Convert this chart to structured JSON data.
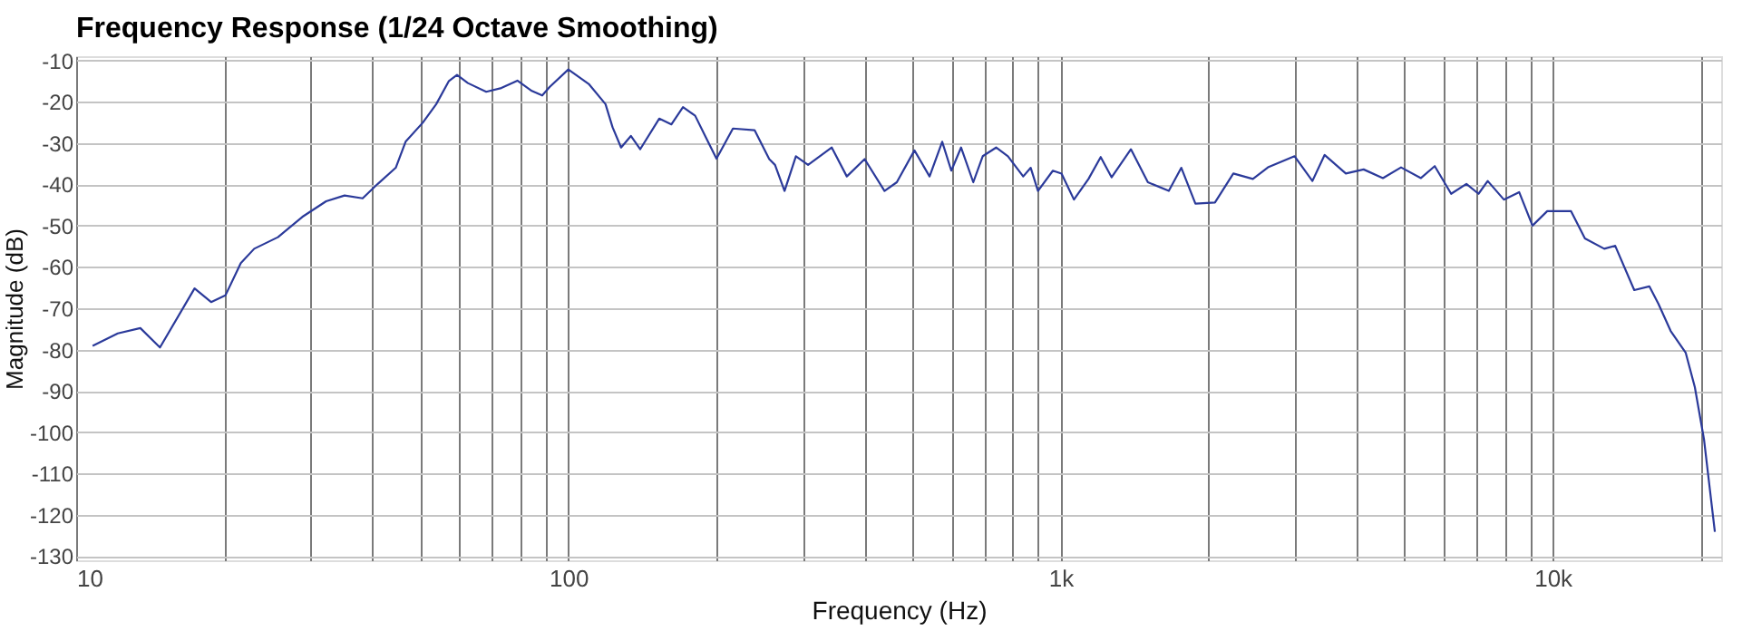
{
  "chart_data": {
    "type": "line",
    "title": "Frequency Response (1/24 Octave Smoothing)",
    "xlabel": "Frequency (Hz)",
    "ylabel": "Magnitude (dB)",
    "log": "x",
    "grid": true,
    "xlim": [
      10,
      22000
    ],
    "ylim": [
      -131,
      -9
    ],
    "xticks": [
      10,
      {
        "value": 20,
        "label": null
      },
      {
        "value": 30,
        "label": null
      },
      {
        "value": 40,
        "label": null
      },
      {
        "value": 50,
        "label": null
      },
      {
        "value": 60,
        "label": null
      },
      {
        "value": 70,
        "label": null
      },
      {
        "value": 80,
        "label": null
      },
      {
        "value": 90,
        "label": null
      },
      100,
      {
        "value": 200,
        "label": null
      },
      {
        "value": 300,
        "label": null
      },
      {
        "value": 400,
        "label": null
      },
      {
        "value": 500,
        "label": null
      },
      {
        "value": 600,
        "label": null
      },
      {
        "value": 700,
        "label": null
      },
      {
        "value": 800,
        "label": null
      },
      {
        "value": 900,
        "label": null
      },
      {
        "value": 1000,
        "label": "1k"
      },
      {
        "value": 2000,
        "label": null
      },
      {
        "value": 3000,
        "label": null
      },
      {
        "value": 4000,
        "label": null
      },
      {
        "value": 5000,
        "label": null
      },
      {
        "value": 6000,
        "label": null
      },
      {
        "value": 7000,
        "label": null
      },
      {
        "value": 8000,
        "label": null
      },
      {
        "value": 9000,
        "label": null
      },
      {
        "value": 10000,
        "label": "10k"
      },
      {
        "value": 20000,
        "label": null
      }
    ],
    "yticks": [
      -10,
      -20,
      -30,
      -40,
      -50,
      -60,
      -70,
      -80,
      -90,
      -100,
      -110,
      -120,
      -130
    ],
    "series": [
      {
        "color": "#2b3a9a",
        "x": [
          10.8,
          12.15,
          13.5,
          14.8,
          17.4,
          18.8,
          20.1,
          21.6,
          23.0,
          25.7,
          28.8,
          32.2,
          35.1,
          38.2,
          41.0,
          44.6,
          46.7,
          50.6,
          53.9,
          57.2,
          59.4,
          62.5,
          68.1,
          73.1,
          78.8,
          84.3,
          88.5,
          91.7,
          100,
          110,
          119,
          123,
          128,
          134,
          140,
          153,
          162,
          171,
          181,
          191,
          200,
          216,
          239,
          256,
          263,
          275,
          290,
          307,
          343,
          368,
          400,
          439,
          465,
          505,
          542,
          575,
          600,
          628,
          665,
          695,
          740,
          782,
          840,
          870,
          900,
          965,
          1005,
          1065,
          1140,
          1207,
          1270,
          1390,
          1505,
          1660,
          1760,
          1880,
          2060,
          2245,
          2460,
          2640,
          2990,
          3250,
          3440,
          3800,
          4130,
          4520,
          4920,
          5400,
          5760,
          6220,
          6680,
          7070,
          7380,
          7960,
          8550,
          9100,
          9750,
          10900,
          11630,
          12730,
          13400,
          14650,
          15720,
          16400,
          17370,
          18640,
          19450,
          20300,
          21360
        ],
        "values": [
          -79.1,
          -76.1,
          -74.8,
          -79.5,
          -65.2,
          -68.5,
          -66.9,
          -59.1,
          -55.6,
          -52.8,
          -47.9,
          -44.1,
          -42.7,
          -43.4,
          -39.9,
          -36.0,
          -29.7,
          -25.1,
          -20.6,
          -15.0,
          -13.5,
          -15.5,
          -17.6,
          -16.7,
          -14.9,
          -17.4,
          -18.5,
          -16.4,
          -12.2,
          -15.7,
          -20.6,
          -26.2,
          -31.1,
          -28.3,
          -31.5,
          -24.1,
          -25.5,
          -21.3,
          -23.4,
          -29.0,
          -33.8,
          -26.5,
          -26.9,
          -33.9,
          -35.3,
          -41.6,
          -33.2,
          -35.3,
          -31.1,
          -38.1,
          -33.9,
          -41.6,
          -39.5,
          -31.8,
          -38.1,
          -29.7,
          -36.7,
          -31.1,
          -39.5,
          -33.2,
          -31.1,
          -33.2,
          -38.1,
          -36.0,
          -41.6,
          -36.7,
          -37.4,
          -43.7,
          -38.7,
          -33.4,
          -38.3,
          -31.5,
          -39.5,
          -41.6,
          -36.0,
          -44.7,
          -44.4,
          -37.4,
          -38.7,
          -35.9,
          -33.2,
          -39.2,
          -32.9,
          -37.4,
          -36.4,
          -38.5,
          -35.9,
          -38.5,
          -35.6,
          -42.3,
          -39.9,
          -42.3,
          -39.2,
          -43.7,
          -41.9,
          -50.0,
          -46.5,
          -46.5,
          -53.1,
          -55.6,
          -54.9,
          -65.6,
          -64.7,
          -68.9,
          -75.5,
          -80.8,
          -89.1,
          -101.7,
          -124.1
        ]
      }
    ]
  }
}
